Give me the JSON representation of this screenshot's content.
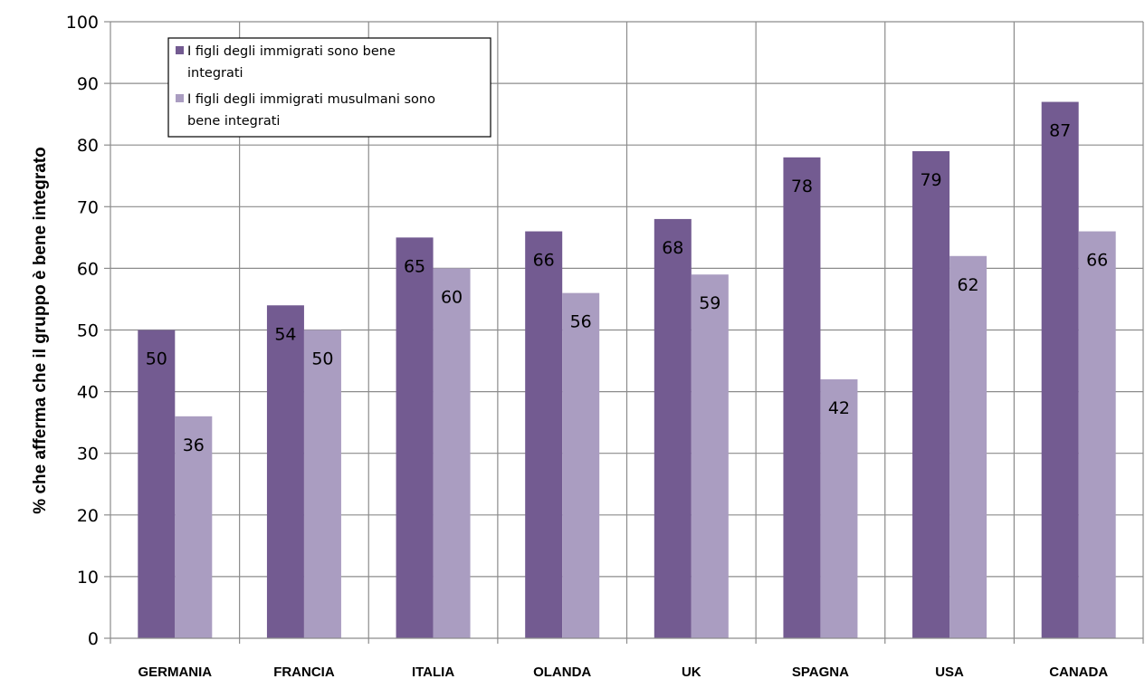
{
  "chart_data": {
    "type": "bar",
    "title": "",
    "xlabel": "",
    "ylabel": "% che afferma che il gruppo è bene integrato",
    "ylim": [
      0,
      100
    ],
    "yticks": [
      0,
      10,
      20,
      30,
      40,
      50,
      60,
      70,
      80,
      90,
      100
    ],
    "categories": [
      "GERMANIA",
      "FRANCIA",
      "ITALIA",
      "OLANDA",
      "UK",
      "SPAGNA",
      "USA",
      "CANADA"
    ],
    "series": [
      {
        "name": "I figli degli immigrati sono bene integrati",
        "legend_lines": [
          "I figli degli immigrati sono bene",
          "integrati"
        ],
        "color": "#735b91",
        "values": [
          50,
          54,
          65,
          66,
          68,
          78,
          79,
          87
        ]
      },
      {
        "name": "I figli degli immigrati musulmani sono bene integrati",
        "legend_lines": [
          "I figli degli immigrati musulmani sono",
          "bene integrati"
        ],
        "color": "#aa9dc1",
        "values": [
          36,
          50,
          60,
          56,
          59,
          42,
          62,
          66
        ]
      }
    ],
    "data_labels": true,
    "grid": true,
    "legend_position": "top-left"
  }
}
